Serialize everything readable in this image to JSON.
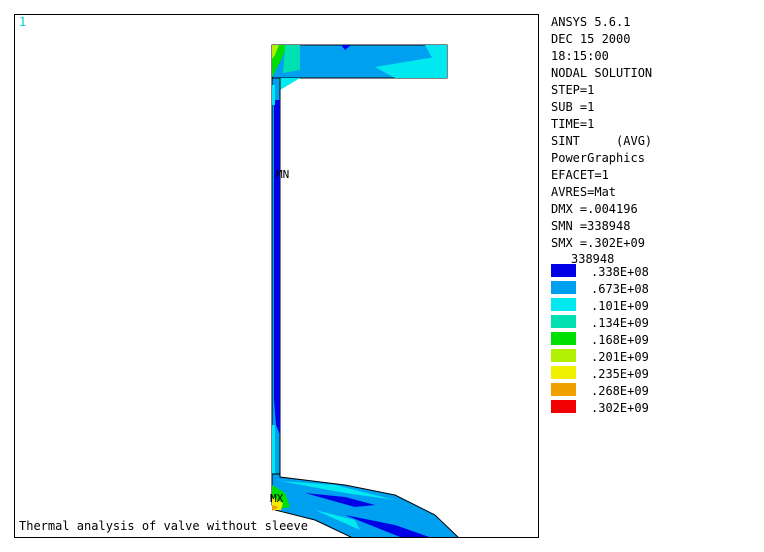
{
  "viewport": {
    "window_number": "1",
    "caption": "Thermal analysis of valve without sleeve",
    "min_label": "MN",
    "max_label": "MX"
  },
  "info": {
    "lines": [
      "ANSYS 5.6.1",
      "DEC 15 2000",
      "18:15:00",
      "NODAL SOLUTION",
      "STEP=1",
      "SUB =1",
      "TIME=1",
      "SINT     (AVG)",
      "PowerGraphics",
      "EFACET=1",
      "AVRES=Mat",
      "DMX =.004196",
      "SMN =338948",
      "SMX =.302E+09"
    ]
  },
  "legend": {
    "min_value": "338948",
    "entries": [
      {
        "label": ".338E+08",
        "color": "#0000e6"
      },
      {
        "label": ".673E+08",
        "color": "#00a0f0"
      },
      {
        "label": ".101E+09",
        "color": "#00e8f0"
      },
      {
        "label": ".134E+09",
        "color": "#00e0b0"
      },
      {
        "label": ".168E+09",
        "color": "#00e000"
      },
      {
        "label": ".201E+09",
        "color": "#b0f000"
      },
      {
        "label": ".235E+09",
        "color": "#f0f000"
      },
      {
        "label": ".268E+09",
        "color": "#f0a000"
      },
      {
        "label": ".302E+09",
        "color": "#f00000"
      }
    ]
  }
}
